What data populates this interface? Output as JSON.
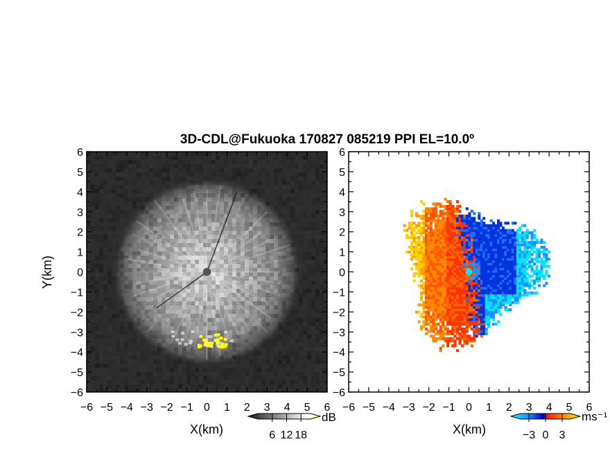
{
  "figure": {
    "title": "3D-CDL@Fukuoka 170827 085219 PPI EL=10.0º"
  },
  "chart_data": [
    {
      "type": "heatmap",
      "panel": "left",
      "quantity": "reflectivity (PPI)",
      "xlabel": "X(km)",
      "ylabel": "Y(km)",
      "xlim": [
        -6,
        6
      ],
      "ylim": [
        -6,
        6
      ],
      "x_ticks": [
        "−6",
        "−5",
        "−4",
        "−3",
        "−2",
        "−1",
        "0",
        "1",
        "2",
        "3",
        "4",
        "5",
        "6"
      ],
      "y_ticks": [
        "6",
        "5",
        "4",
        "3",
        "2",
        "1",
        "0",
        "−1",
        "−2",
        "−3",
        "−4",
        "−5",
        "−6"
      ],
      "colorbar": {
        "unit": "dB",
        "tick_labels": [
          "6",
          "12",
          "18"
        ],
        "ticks": [
          6,
          12,
          18
        ],
        "range": [
          0,
          22
        ],
        "colors": [
          "#1a1a1a",
          "#ffffff",
          "#ffff00"
        ]
      },
      "features": {
        "echo_radius_km": 4.7,
        "center_mask_km": 0.2,
        "strong_echo": {
          "x_range_km": [
            -0.5,
            0.9
          ],
          "y_range_km": [
            -3.0,
            -3.7
          ]
        }
      }
    },
    {
      "type": "heatmap",
      "panel": "right",
      "quantity": "Doppler velocity (PPI)",
      "xlabel": "X(km)",
      "ylabel": "",
      "xlim": [
        -6,
        6
      ],
      "ylim": [
        -6,
        6
      ],
      "x_ticks": [
        "−6",
        "−5",
        "−4",
        "−3",
        "−2",
        "−1",
        "0",
        "1",
        "2",
        "3",
        "4",
        "5",
        "6"
      ],
      "y_ticks": [
        "6",
        "5",
        "4",
        "3",
        "2",
        "1",
        "0",
        "−1",
        "−2",
        "−3",
        "−4",
        "−5",
        "−6"
      ],
      "colorbar": {
        "unit": "ms⁻¹",
        "tick_labels": [
          "−3",
          "0",
          "3"
        ],
        "ticks": [
          -3,
          0,
          3
        ],
        "range": [
          -4.5,
          4.5
        ],
        "colors": [
          "#00ffff",
          "#1e90ff",
          "#0000cd",
          "#ff2200",
          "#ff8800",
          "#ffe000"
        ]
      },
      "features": {
        "echo_radius_km": 4.0,
        "center_marker": "cyan dot",
        "approaching_side": "east (negative)",
        "receding_side": "west (positive)"
      }
    }
  ]
}
